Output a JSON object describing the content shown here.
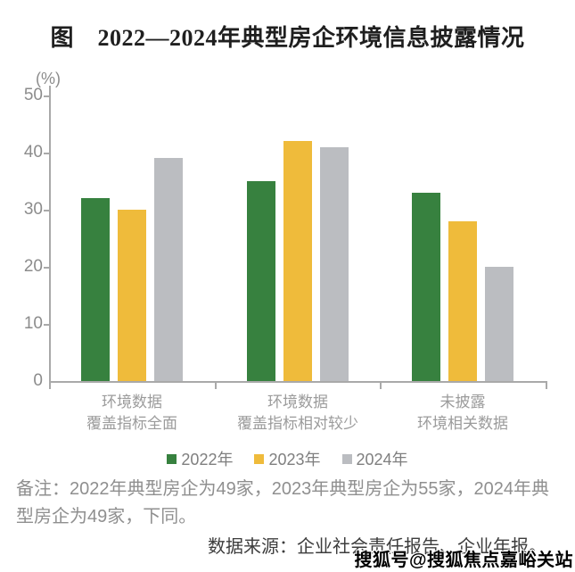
{
  "chart_data": {
    "type": "bar",
    "title": "图　2022—2024年典型房企环境信息披露情况",
    "unit_label": "(%)",
    "ylabel": "(%)",
    "xlabel": "",
    "ylim": [
      0,
      50
    ],
    "yticks": [
      0,
      10,
      20,
      30,
      40,
      50
    ],
    "grid": false,
    "legend_position": "bottom",
    "categories": [
      [
        "环境数据",
        "覆盖指标全面"
      ],
      [
        "环境数据",
        "覆盖指标相对较少"
      ],
      [
        "未披露",
        "环境相关数据"
      ]
    ],
    "series": [
      {
        "name": "2022年",
        "color": "#37813F",
        "values": [
          32,
          35,
          33
        ]
      },
      {
        "name": "2023年",
        "color": "#EFBB3B",
        "values": [
          30,
          42,
          28
        ]
      },
      {
        "name": "2024年",
        "color": "#BBBDC1",
        "values": [
          39,
          41,
          20
        ]
      }
    ]
  },
  "note": "备注：2022年典型房企为49家，2023年典型房企为55家，2024年典型房企为49家，下同。",
  "source": "数据来源：企业社会责任报告、企业年报。",
  "watermark": "搜狐号@搜狐焦点嘉峪关站",
  "colors": {
    "axis": "#A9A9A9",
    "tick_label": "#8C8C8C",
    "category_label": "#9B9B9B",
    "legend_label": "#7F7F7F",
    "note_text": "#8F8F8F",
    "source_text": "#3D3D3D",
    "title_text": "#1F1F1F",
    "background": "#FFFFFF"
  }
}
